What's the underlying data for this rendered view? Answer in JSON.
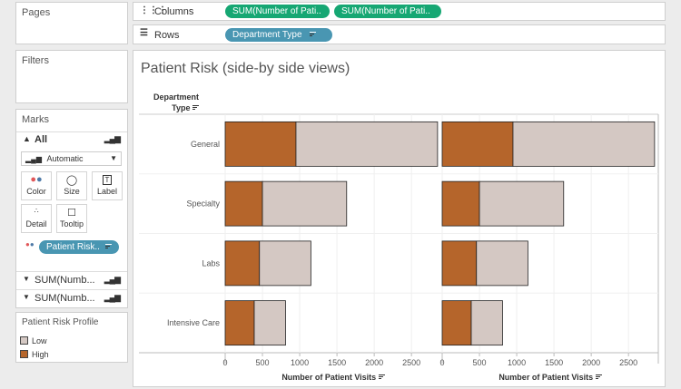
{
  "pages_label": "Pages",
  "filters_label": "Filters",
  "columns": {
    "label": "Columns",
    "pills": [
      "SUM(Number of Pati..",
      "SUM(Number of Pati.."
    ]
  },
  "rows": {
    "label": "Rows",
    "pill": "Department Type"
  },
  "marks": {
    "label": "Marks",
    "all_label": "All",
    "dropdown_value": "Automatic",
    "buttons": [
      "Color",
      "Size",
      "Label",
      "Detail",
      "Tooltip"
    ],
    "color_pill": "Patient Risk..",
    "sub_cards": [
      "SUM(Numb...",
      "SUM(Numb..."
    ]
  },
  "legend": {
    "title": "Patient Risk Profile",
    "items": [
      {
        "label": "Low",
        "color": "#d4c8c3"
      },
      {
        "label": "High",
        "color": "#b5652b"
      }
    ]
  },
  "chart_data": {
    "type": "bar",
    "title": "Patient Risk (side-by side views)",
    "row_header": [
      "Department",
      "Type"
    ],
    "categories": [
      "General",
      "Specialty",
      "Labs",
      "Intensive Care"
    ],
    "series": [
      {
        "name": "High",
        "color": "#b5652b",
        "values": [
          950,
          500,
          460,
          390
        ]
      },
      {
        "name": "Low",
        "color": "#d4c8c3",
        "values": [
          1900,
          1130,
          690,
          420
        ]
      }
    ],
    "stacked": true,
    "panels": 2,
    "xlabel": "Number of Patient Visits",
    "xticks": [
      0,
      500,
      1000,
      1500,
      2000,
      2500
    ],
    "xlim": [
      0,
      2900
    ]
  }
}
